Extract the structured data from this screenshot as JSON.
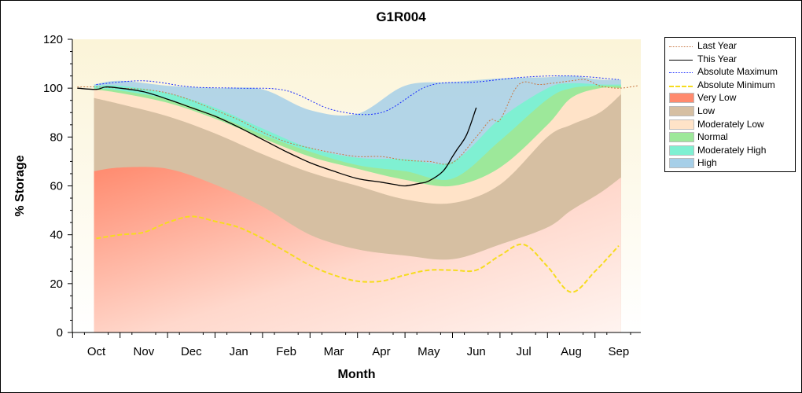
{
  "chart_data": {
    "type": "area",
    "title": "G1R004",
    "xlabel": "Month",
    "ylabel": "% Storage",
    "ylim": [
      0,
      120
    ],
    "yticks": [
      0,
      20,
      40,
      60,
      80,
      100,
      120
    ],
    "categories": [
      "Oct",
      "Nov",
      "Dec",
      "Jan",
      "Feb",
      "Mar",
      "Apr",
      "May",
      "Jun",
      "Jul",
      "Aug",
      "Sep"
    ],
    "grid": false,
    "legend_position": "right",
    "bands": [
      {
        "name": "Very Low",
        "color": "#ff8a6e",
        "upper": [
          66,
          67.5,
          67,
          60.5,
          51.5,
          40,
          34,
          31.5,
          30,
          36,
          43,
          50,
          57,
          63.5
        ]
      },
      {
        "name": "Low",
        "color": "#d6bfa2",
        "upper": [
          96,
          93.5,
          88.5,
          81.5,
          73,
          65.5,
          60,
          54.5,
          53,
          60.5,
          80,
          85,
          90,
          97.5
        ]
      },
      {
        "name": "Moderately Low",
        "color": "#ffe3c8",
        "upper": [
          99.5,
          98,
          94,
          87.5,
          79.5,
          72,
          67,
          62.5,
          60,
          67.5,
          85,
          96,
          100,
          100
        ]
      },
      {
        "name": "Normal",
        "color": "#9de89a",
        "upper": [
          100,
          99,
          95.5,
          89,
          81,
          74,
          68.5,
          66,
          63,
          78.5,
          95.5,
          100,
          101,
          101
        ]
      },
      {
        "name": "Moderately High",
        "color": "#7ff0d2",
        "upper": [
          101,
          101,
          98,
          92,
          83.5,
          75.5,
          71.5,
          71,
          70,
          87.5,
          100,
          102,
          101.5,
          101.5
        ]
      },
      {
        "name": "High",
        "color": "#a6cfe8",
        "upper": [
          101.5,
          103,
          101,
          100,
          99.5,
          91,
          89.5,
          101,
          102.5,
          104,
          104.5,
          105,
          103.5,
          103.5
        ]
      }
    ],
    "series": [
      {
        "name": "Last Year",
        "color": "#c87844",
        "style": "dot",
        "x": [
          -0.4,
          0,
          0.5,
          1,
          1.5,
          2,
          2.5,
          3,
          3.5,
          4,
          4.5,
          5,
          5.5,
          6,
          6.5,
          7,
          7.5,
          8,
          8.3,
          8.5,
          8.8,
          9,
          9.3,
          9.6,
          10,
          10.3,
          10.6,
          11,
          11.4
        ],
        "y": [
          100.5,
          100.5,
          100,
          99.5,
          98,
          95,
          91,
          87,
          82,
          78,
          75.5,
          73.5,
          72,
          72,
          70.5,
          70,
          69.5,
          80,
          87,
          87,
          99,
          102.5,
          101.5,
          102,
          103,
          103.5,
          101,
          100,
          101
        ]
      },
      {
        "name": "This Year",
        "color": "#000000",
        "style": "solid",
        "x": [
          -0.4,
          0,
          0.2,
          0.5,
          1,
          1.5,
          2,
          2.5,
          3,
          3.5,
          4,
          4.5,
          5,
          5.5,
          6,
          6.3,
          6.5,
          6.8,
          7,
          7.3,
          7.5,
          7.6,
          7.8,
          8
        ],
        "y": [
          100,
          99.5,
          100.5,
          100,
          98.5,
          95.5,
          92,
          88.5,
          84,
          79,
          74,
          69.5,
          66,
          63,
          61.5,
          60.5,
          60,
          61,
          62,
          66,
          72,
          75,
          81,
          92
        ]
      },
      {
        "name": "Absolute Maximum",
        "color": "#1a2cff",
        "style": "dot",
        "x": [
          0,
          1,
          2,
          3,
          4,
          5,
          6,
          7,
          8,
          9,
          10,
          11
        ],
        "y": [
          101.5,
          103,
          100.5,
          100,
          99,
          91,
          90,
          101,
          102.5,
          104.5,
          105,
          103.5
        ]
      },
      {
        "name": "Absolute Minimum",
        "color": "#f6dc1e",
        "style": "dash",
        "x": [
          0,
          0.5,
          1,
          1.5,
          2,
          2.5,
          3,
          3.5,
          4,
          4.5,
          5,
          5.5,
          6,
          6.5,
          7,
          7.5,
          8,
          8.5,
          9,
          9.5,
          10,
          10.5,
          11
        ],
        "y": [
          38.5,
          40,
          41,
          45,
          47.5,
          45.5,
          43,
          38.5,
          33,
          27.5,
          23.5,
          21,
          21,
          23.5,
          25.5,
          25.5,
          25.5,
          31.5,
          36,
          27,
          16.5,
          25,
          35.5
        ]
      }
    ]
  },
  "legend": {
    "items": [
      {
        "label": "Last Year",
        "swatch": "line-dot",
        "color": "#c87844"
      },
      {
        "label": "This Year",
        "swatch": "line-solid",
        "color": "#000000"
      },
      {
        "label": "Absolute Maximum",
        "swatch": "line-dot",
        "color": "#1a2cff"
      },
      {
        "label": "Absolute Minimum",
        "swatch": "line-dash",
        "color": "#f6dc1e"
      },
      {
        "label": "Very Low",
        "swatch": "fill",
        "color": "#ff8a6e"
      },
      {
        "label": "Low",
        "swatch": "fill",
        "color": "#d6bfa2"
      },
      {
        "label": "Moderately Low",
        "swatch": "fill",
        "color": "#ffe3c8"
      },
      {
        "label": "Normal",
        "swatch": "fill",
        "color": "#9de89a"
      },
      {
        "label": "Moderately High",
        "swatch": "fill",
        "color": "#7ff0d2"
      },
      {
        "label": "High",
        "swatch": "fill",
        "color": "#a6cfe8"
      }
    ]
  }
}
